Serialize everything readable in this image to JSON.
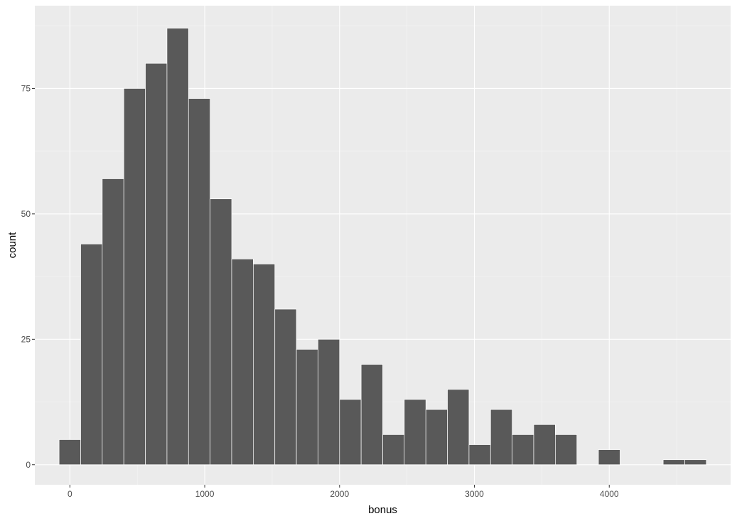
{
  "chart_data": {
    "type": "bar",
    "subtype": "histogram",
    "title": "",
    "xlabel": "bonus",
    "ylabel": "count",
    "bin_width": 160,
    "x_bin_centers": [
      0,
      160,
      320,
      480,
      640,
      800,
      960,
      1120,
      1280,
      1440,
      1600,
      1760,
      1920,
      2080,
      2240,
      2400,
      2560,
      2720,
      2880,
      3040,
      3200,
      3360,
      3520,
      3680,
      3840,
      4000,
      4160,
      4320,
      4480,
      4640
    ],
    "values": [
      5,
      44,
      57,
      75,
      80,
      87,
      73,
      53,
      41,
      40,
      31,
      23,
      25,
      13,
      20,
      6,
      13,
      11,
      15,
      4,
      11,
      6,
      8,
      6,
      0,
      3,
      0,
      0,
      1,
      1
    ],
    "xlim": [
      -260,
      4900
    ],
    "ylim": [
      -4,
      91.5
    ],
    "x_ticks": [
      0,
      1000,
      2000,
      3000,
      4000
    ],
    "x_tick_labels": [
      "0",
      "1000",
      "2000",
      "3000",
      "4000"
    ],
    "y_ticks": [
      0,
      25,
      50,
      75
    ],
    "y_tick_labels": [
      "0",
      "25",
      "50",
      "75"
    ],
    "grid": true,
    "legend": "none",
    "colors": {
      "panel_background": "#ebebeb",
      "grid_major": "#ffffff",
      "grid_minor": "#f5f5f5",
      "bar_fill": "#595959",
      "bar_outline": "#ffffff",
      "tick_text": "#4d4d4d",
      "tick_mark": "#333333"
    }
  }
}
